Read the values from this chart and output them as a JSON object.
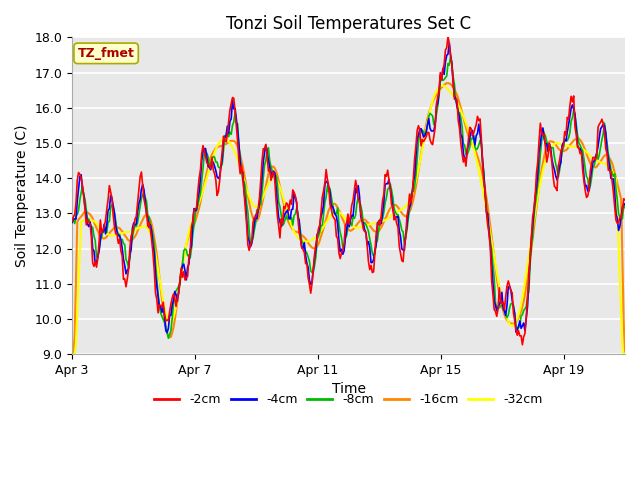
{
  "title": "Tonzi Soil Temperatures Set C",
  "xlabel": "Time",
  "ylabel": "Soil Temperature (C)",
  "ylim": [
    9.0,
    18.0
  ],
  "yticks": [
    9.0,
    10.0,
    11.0,
    12.0,
    13.0,
    14.0,
    15.0,
    16.0,
    17.0,
    18.0
  ],
  "xtick_labels": [
    "Apr 3",
    "Apr 7",
    "Apr 11",
    "Apr 15",
    "Apr 19"
  ],
  "xtick_positions": [
    0,
    4,
    8,
    12,
    16
  ],
  "xlim": [
    0,
    18
  ],
  "legend_label": "TZ_fmet",
  "series_labels": [
    "-2cm",
    "-4cm",
    "-8cm",
    "-16cm",
    "-32cm"
  ],
  "series_colors": [
    "#ff0000",
    "#0000ff",
    "#00bb00",
    "#ff8800",
    "#ffff00"
  ],
  "title_fontsize": 12,
  "axis_label_fontsize": 10,
  "tick_fontsize": 9,
  "legend_box_facecolor": "#ffffcc",
  "legend_text_color": "#aa0000",
  "legend_border_color": "#aaaa00",
  "plot_facecolor": "#e8e8e8",
  "fig_facecolor": "#ffffff",
  "grid_color": "#ffffff",
  "grid_linewidth": 1.2,
  "n_points": 432
}
